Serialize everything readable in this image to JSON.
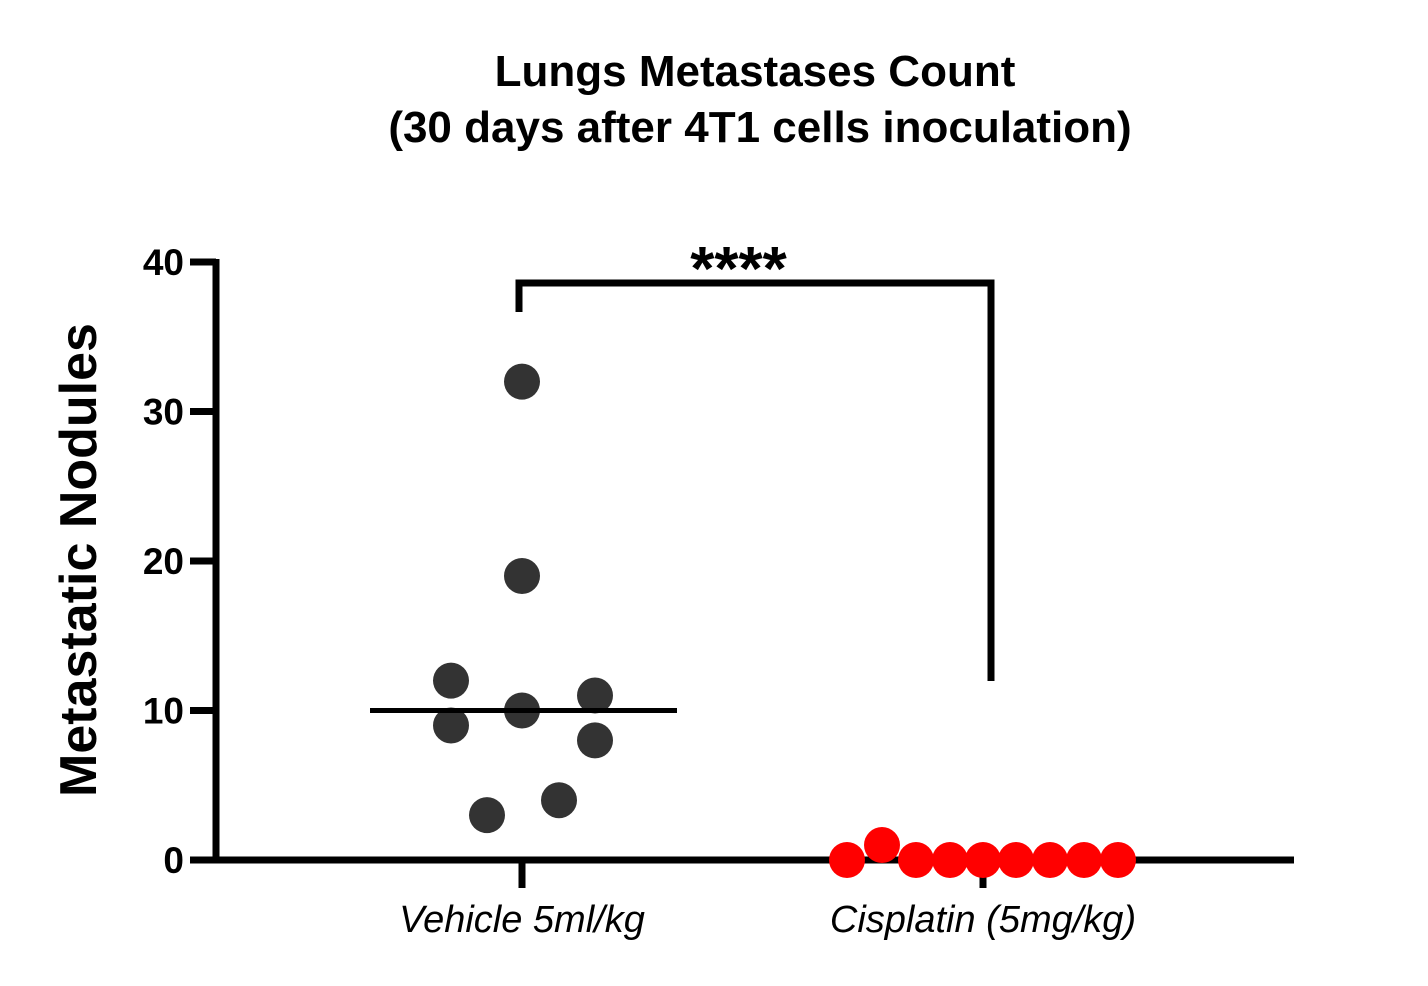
{
  "chart_data": {
    "type": "scatter",
    "title": [
      "Lungs Metastases Count",
      "(30 days after 4T1 cells inoculation)"
    ],
    "ylabel": "Metastatic Nodules",
    "xlabel": "",
    "ylim": [
      0,
      40
    ],
    "yticks": [
      0,
      10,
      20,
      30,
      40
    ],
    "ytick_labels": [
      "0",
      "10",
      "20",
      "30",
      "40"
    ],
    "categories": [
      "Vehicle 5ml/kg",
      "Cisplatin (5mg/kg)"
    ],
    "series": [
      {
        "category": "Vehicle 5ml/kg",
        "color": "#333333",
        "values": [
          32,
          19,
          12,
          11,
          10,
          9,
          8,
          4,
          3
        ],
        "median": 10
      },
      {
        "category": "Cisplatin (5mg/kg)",
        "color": "#ff0000",
        "values": [
          0,
          1,
          0,
          0,
          0,
          0,
          0,
          0,
          0
        ]
      }
    ],
    "significance": {
      "label": "****",
      "between": [
        "Vehicle 5ml/kg",
        "Cisplatin (5mg/kg)"
      ]
    },
    "grid": false,
    "legend": "none"
  }
}
